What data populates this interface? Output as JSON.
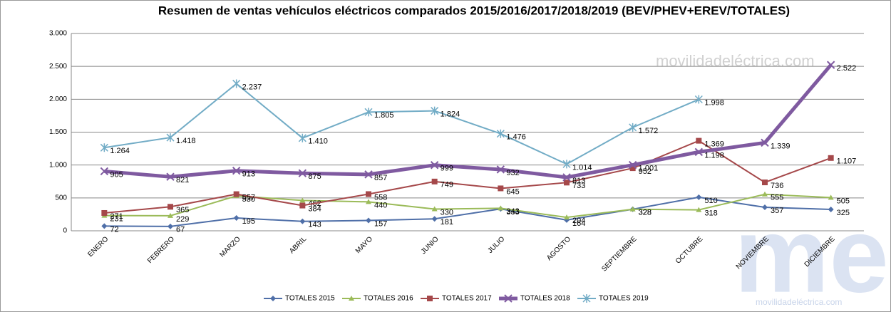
{
  "chart_data": {
    "type": "line",
    "title": "Resumen de ventas vehículos eléctricos comparados 2015/2016/2017/2018/2019  (BEV/PHEV+EREV/TOTALES)",
    "watermark": "movilidadeléctrica.com",
    "logo": "me",
    "categories": [
      "ENERO",
      "FEBRERO",
      "MARZO",
      "ABRIL",
      "MAYO",
      "JUNIO",
      "JULIO",
      "AGOSTO",
      "SEPTIEMBRE",
      "OCTUBRE",
      "NOVIEMBRE",
      "DICIEMBRE"
    ],
    "series": [
      {
        "name": "TOTALES 2015",
        "color": "#4f6fa8",
        "marker": "diamond",
        "width": 2,
        "values": [
          72,
          67,
          195,
          143,
          157,
          181,
          333,
          164,
          328,
          510,
          357,
          325
        ],
        "value_labels": [
          "72",
          "67",
          "195",
          "143",
          "157",
          "181",
          "333",
          "164",
          "328",
          "510",
          "357",
          "325"
        ]
      },
      {
        "name": "TOTALES 2016",
        "color": "#9bbb59",
        "marker": "triangle",
        "width": 2,
        "values": [
          231,
          229,
          530,
          462,
          440,
          330,
          343,
          204,
          328,
          318,
          555,
          505
        ],
        "value_labels": [
          "231",
          "229",
          "530",
          "462",
          "440",
          "330",
          "343",
          "204",
          "328",
          "318",
          "555",
          "505"
        ]
      },
      {
        "name": "TOTALES 2017",
        "color": "#a5484a",
        "marker": "square",
        "width": 2,
        "values": [
          271,
          365,
          557,
          384,
          558,
          749,
          645,
          733,
          952,
          1369,
          736,
          1107
        ],
        "value_labels": [
          "271",
          "365",
          "557",
          "384",
          "558",
          "749",
          "645",
          "733",
          "952",
          "1.369",
          "736",
          "1.107"
        ]
      },
      {
        "name": "TOTALES 2018",
        "color": "#7f5aa0",
        "marker": "x",
        "width": 5,
        "values": [
          905,
          821,
          913,
          875,
          857,
          999,
          932,
          813,
          1001,
          1198,
          1339,
          2522
        ],
        "value_labels": [
          "905",
          "821",
          "913",
          "875",
          "857",
          "999",
          "932",
          "813",
          "1.001",
          "1.198",
          "1.339",
          "2.522"
        ]
      },
      {
        "name": "TOTALES 2019",
        "color": "#72acc6",
        "marker": "star",
        "width": 2,
        "values": [
          1264,
          1418,
          2237,
          1410,
          1805,
          1824,
          1476,
          1014,
          1572,
          1998,
          null,
          null
        ],
        "value_labels": [
          "1.264",
          "1.418",
          "2.237",
          "1.410",
          "1.805",
          "1.824",
          "1.476",
          "1.014",
          "1.572",
          "1.998",
          null,
          null
        ]
      }
    ],
    "ylim": [
      0,
      3000
    ],
    "yticks": [
      0,
      500,
      {
        "value": 1000,
        "label": "1.000"
      },
      {
        "value": 1500,
        "label": "1.500"
      },
      {
        "value": 2000,
        "label": "2.000"
      },
      {
        "value": 2500,
        "label": "2.500"
      },
      {
        "value": 3000,
        "label": "3.000"
      }
    ],
    "grid": true
  }
}
